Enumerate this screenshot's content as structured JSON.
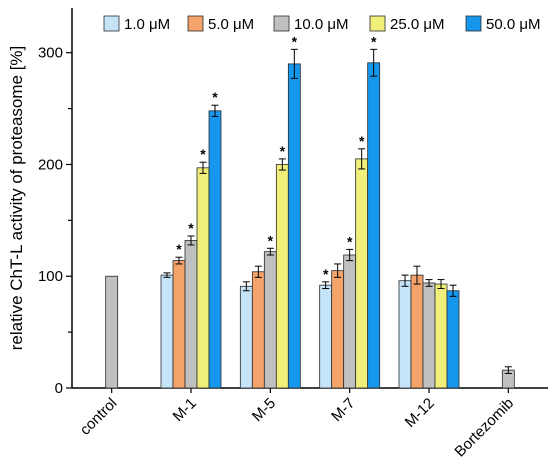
{
  "chart_data": {
    "type": "bar",
    "title": "",
    "xlabel": "",
    "ylabel": "relative ChT-L activity of proteasome [%]",
    "ylim": [
      0,
      340
    ],
    "yticks": [
      0,
      100,
      200,
      300
    ],
    "grid": false,
    "legend_position": "top-right",
    "categories": [
      "control",
      "M-1",
      "M-5",
      "M-7",
      "M-12",
      "Bortezomib"
    ],
    "series": [
      {
        "name": "1.0 μM",
        "color": "#c5e4f8",
        "values": [
          null,
          101,
          91,
          92,
          96,
          null
        ],
        "errors": [
          null,
          2,
          4,
          3,
          5,
          null
        ],
        "significant": [
          false,
          false,
          false,
          true,
          false,
          false
        ]
      },
      {
        "name": "5.0 μM",
        "color": "#f4a36a",
        "values": [
          null,
          114,
          104,
          105,
          101,
          null
        ],
        "errors": [
          null,
          3,
          5,
          6,
          8,
          null
        ],
        "significant": [
          false,
          true,
          false,
          false,
          false,
          false
        ]
      },
      {
        "name": "10.0 μM",
        "color": "#c0c0c0",
        "values": [
          100,
          132,
          122,
          119,
          94,
          16
        ],
        "errors": [
          null,
          4,
          3,
          5,
          3,
          3
        ],
        "significant": [
          false,
          true,
          true,
          true,
          false,
          false
        ]
      },
      {
        "name": "25.0 μM",
        "color": "#f0ef7a",
        "values": [
          null,
          197,
          200,
          205,
          93,
          null
        ],
        "errors": [
          null,
          5,
          5,
          9,
          4,
          null
        ],
        "significant": [
          false,
          true,
          true,
          true,
          false,
          false
        ]
      },
      {
        "name": "50.0 μM",
        "color": "#1597ee",
        "values": [
          null,
          248,
          290,
          291,
          87,
          null
        ],
        "errors": [
          null,
          5,
          13,
          12,
          5,
          null
        ],
        "significant": [
          false,
          true,
          true,
          true,
          false,
          false
        ]
      }
    ],
    "significance_marker": "*"
  }
}
